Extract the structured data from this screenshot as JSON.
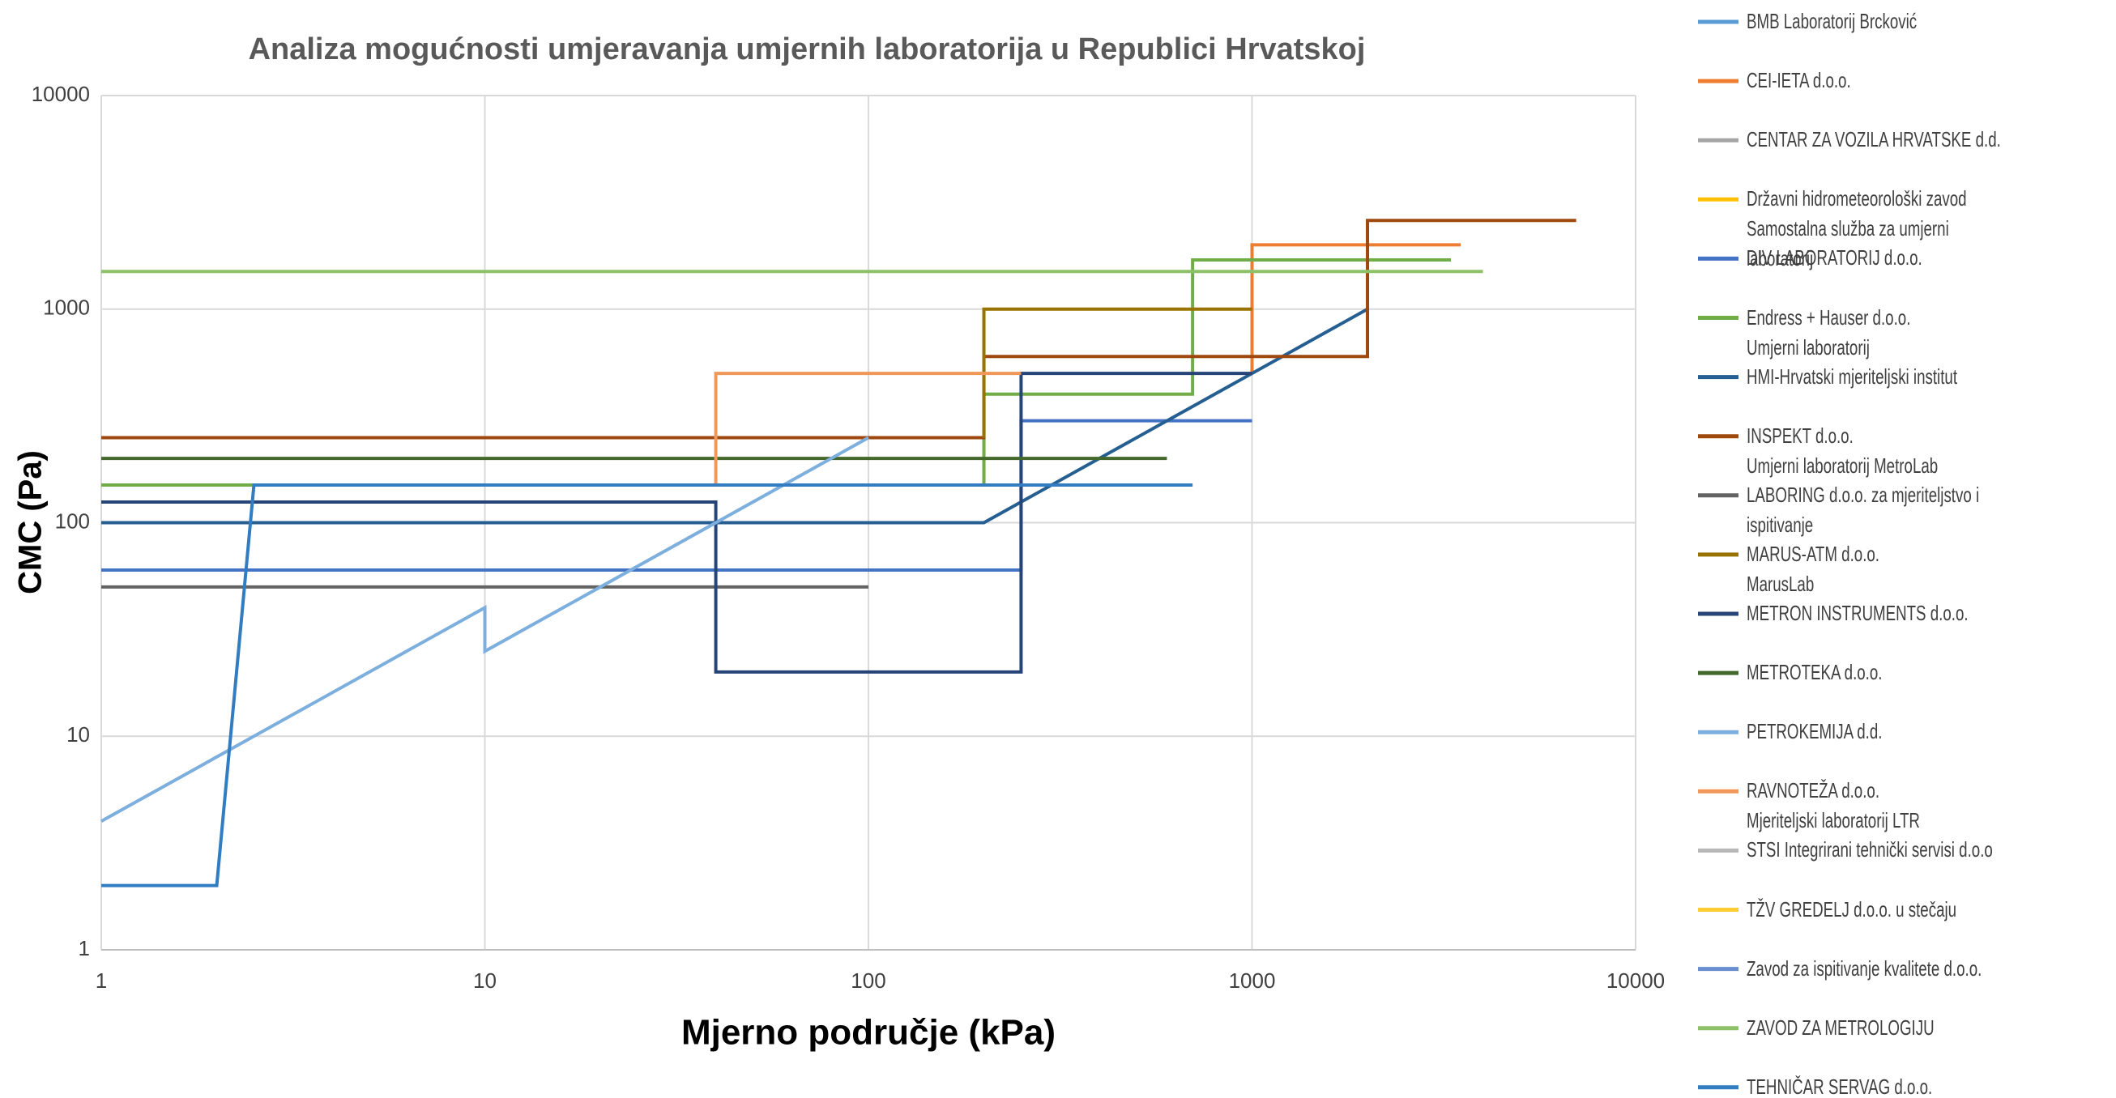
{
  "chart_data": {
    "type": "line",
    "title": "Analiza mogućnosti umjeravanja umjernih laboratorija u Republici Hrvatskoj",
    "xlabel": "Mjerno područje (kPa)",
    "ylabel": "CMC (Pa)",
    "xscale": "log",
    "yscale": "log",
    "grid": true,
    "legend": "right",
    "xlim": [
      1,
      10000
    ],
    "xticks": [
      1,
      10,
      100,
      1000,
      10000
    ],
    "ylim": [
      1,
      10000
    ],
    "yticks": [
      1,
      10,
      100,
      1000,
      10000
    ],
    "series": [
      {
        "name": "BMB Laboratorij Brcković",
        "color": "#5b9bd5",
        "x": [],
        "values": []
      },
      {
        "name": "CEI-IETA d.o.o.",
        "color": "#ed7d31",
        "x": [
          1000,
          1000,
          3500
        ],
        "values": [
          500,
          2000,
          2000
        ]
      },
      {
        "name": "CENTAR ZA VOZILA HRVATSKE d.d.",
        "color": "#a5a5a5",
        "x": [],
        "values": []
      },
      {
        "name": "Državni hidrometeorološki zavod\nSamostalna služba za umjerni laboratorij",
        "color": "#ffc000",
        "x": [],
        "values": []
      },
      {
        "name": "DIV LABORATORIJ d.o.o.",
        "color": "#4472c4",
        "x": [
          1,
          250,
          250,
          1000
        ],
        "values": [
          60,
          60,
          300,
          300
        ]
      },
      {
        "name": "Endress + Hauser d.o.o.\nUmjerni laboratorij",
        "color": "#70ad47",
        "x": [
          1,
          200,
          200,
          700,
          700,
          3300
        ],
        "values": [
          150,
          150,
          400,
          400,
          1700,
          1700
        ]
      },
      {
        "name": "HMI-Hrvatski mjeriteljski institut",
        "color": "#255e91",
        "x": [
          1,
          200,
          2000
        ],
        "values": [
          100,
          100,
          1000
        ]
      },
      {
        "name": "INSPEKT d.o.o.\nUmjerni laboratorij MetroLab",
        "color": "#9e480e",
        "x": [
          1,
          200,
          200,
          2000,
          2000,
          7000
        ],
        "values": [
          250,
          250,
          600,
          600,
          2600,
          2600
        ]
      },
      {
        "name": "LABORING d.o.o. za mjeriteljstvo i ispitivanje",
        "color": "#636363",
        "x": [
          1,
          100
        ],
        "values": [
          50,
          50
        ]
      },
      {
        "name": "MARUS-ATM d.o.o.\nMarusLab",
        "color": "#997300",
        "x": [
          200,
          200,
          1000
        ],
        "values": [
          250,
          1000,
          1000
        ]
      },
      {
        "name": "METRON INSTRUMENTS d.o.o.",
        "color": "#264478",
        "x": [
          1,
          40,
          40,
          250,
          250,
          1000
        ],
        "values": [
          125,
          125,
          20,
          20,
          500,
          500
        ]
      },
      {
        "name": "METROTEKA d.o.o.",
        "color": "#43682b",
        "x": [
          1,
          600
        ],
        "values": [
          200,
          200
        ]
      },
      {
        "name": "PETROKEMIJA d.d.",
        "color": "#7cafdd",
        "x": [
          1,
          10,
          10,
          100
        ],
        "values": [
          4,
          40,
          25,
          250
        ]
      },
      {
        "name": "RAVNOTEŽA d.o.o.\nMjeriteljski laboratorij LTR",
        "color": "#f1975a",
        "x": [
          40,
          40,
          250
        ],
        "values": [
          150,
          500,
          500
        ]
      },
      {
        "name": "STSI Integrirani tehnički servisi d.o.o",
        "color": "#b7b7b7",
        "x": [],
        "values": []
      },
      {
        "name": "TŽV GREDELJ d.o.o. u stečaju",
        "color": "#ffcd33",
        "x": [],
        "values": []
      },
      {
        "name": "Zavod za ispitivanje kvalitete d.o.o.",
        "color": "#698ed0",
        "x": [],
        "values": []
      },
      {
        "name": "ZAVOD ZA METROLOGIJU",
        "color": "#8cc168",
        "x": [
          1,
          4000
        ],
        "values": [
          1500,
          1500
        ]
      },
      {
        "name": "TEHNIČAR SERVAG d.o.o.",
        "color": "#327dc2",
        "x": [
          1,
          2,
          2.5,
          700
        ],
        "values": [
          2,
          2,
          150,
          150
        ]
      }
    ]
  }
}
